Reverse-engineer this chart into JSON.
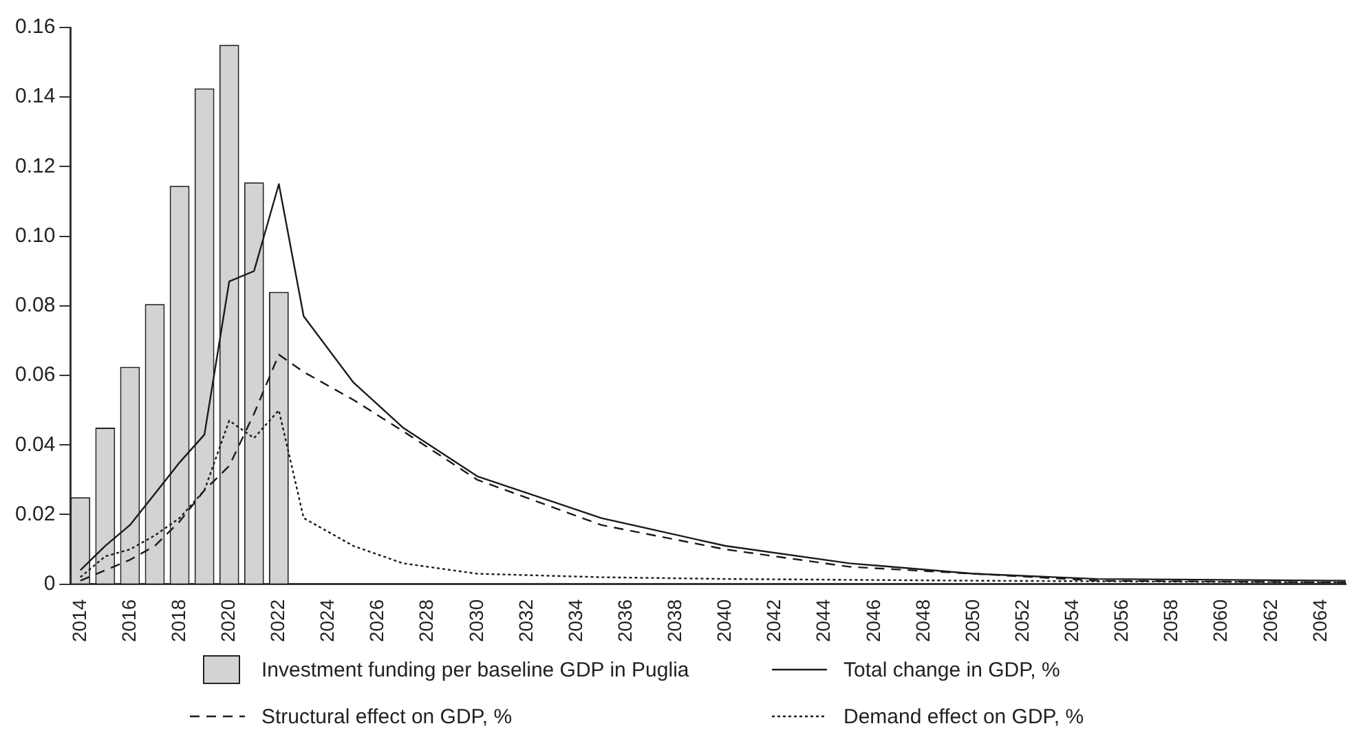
{
  "chart_data": {
    "type": "bar",
    "xlim": [
      2013.6,
      2065
    ],
    "xticks": [
      2014,
      2016,
      2018,
      2020,
      2022,
      2024,
      2026,
      2028,
      2030,
      2032,
      2034,
      2036,
      2038,
      2040,
      2042,
      2044,
      2046,
      2048,
      2050,
      2052,
      2054,
      2056,
      2058,
      2060,
      2062,
      2064
    ],
    "ylim": [
      0,
      0.16
    ],
    "yticks": [
      {
        "value": 0,
        "label": "0"
      },
      {
        "value": 0.02,
        "label": "0.02"
      },
      {
        "value": 0.04,
        "label": "0.04"
      },
      {
        "value": 0.06,
        "label": "0.06"
      },
      {
        "value": 0.08,
        "label": "0.08"
      },
      {
        "value": 0.1,
        "label": "0.10"
      },
      {
        "value": 0.12,
        "label": "0.12"
      },
      {
        "value": 0.14,
        "label": "0.14"
      },
      {
        "value": 0.16,
        "label": "0.16"
      }
    ],
    "grid": false,
    "legend": "bottom",
    "series": [
      {
        "name": "Investment funding per baseline GDP in Puglia",
        "color": "#d3d3d3",
        "x": [
          2014,
          2015,
          2016,
          2017,
          2018,
          2019,
          2020,
          2021,
          2022
        ],
        "values": [
          0.025,
          0.045,
          0.0625,
          0.0805,
          0.1145,
          0.1425,
          0.155,
          0.1155,
          0.084
        ]
      },
      {
        "name": "Total change in GDP, %",
        "type": "line",
        "line_style": "solid",
        "color": "#1a1a1a",
        "x": [
          2014,
          2015,
          2016,
          2017,
          2018,
          2019,
          2020,
          2021,
          2022,
          2023,
          2025,
          2027,
          2030,
          2035,
          2040,
          2045,
          2050,
          2055,
          2065
        ],
        "values": [
          0.004,
          0.011,
          0.017,
          0.026,
          0.035,
          0.043,
          0.087,
          0.09,
          0.115,
          0.077,
          0.058,
          0.045,
          0.031,
          0.019,
          0.011,
          0.006,
          0.003,
          0.0015,
          0.001
        ]
      },
      {
        "name": "Structural effect on GDP, %",
        "type": "line",
        "line_style": "dashed",
        "color": "#1a1a1a",
        "x": [
          2014,
          2015,
          2016,
          2017,
          2018,
          2019,
          2020,
          2021,
          2022,
          2023,
          2025,
          2027,
          2030,
          2035,
          2040,
          2045,
          2050,
          2055,
          2065
        ],
        "values": [
          0.001,
          0.004,
          0.007,
          0.011,
          0.018,
          0.027,
          0.034,
          0.049,
          0.066,
          0.061,
          0.053,
          0.044,
          0.03,
          0.017,
          0.01,
          0.005,
          0.003,
          0.001,
          0.0005
        ]
      },
      {
        "name": "Demand effect on GDP, %",
        "type": "line",
        "line_style": "dotted",
        "color": "#1a1a1a",
        "x": [
          2014,
          2015,
          2016,
          2017,
          2018,
          2019,
          2020,
          2021,
          2022,
          2023,
          2025,
          2027,
          2030,
          2035,
          2040,
          2050,
          2065
        ],
        "values": [
          0.002,
          0.008,
          0.01,
          0.014,
          0.019,
          0.027,
          0.047,
          0.042,
          0.05,
          0.019,
          0.011,
          0.006,
          0.003,
          0.002,
          0.0015,
          0.001,
          0.0005
        ]
      }
    ]
  }
}
